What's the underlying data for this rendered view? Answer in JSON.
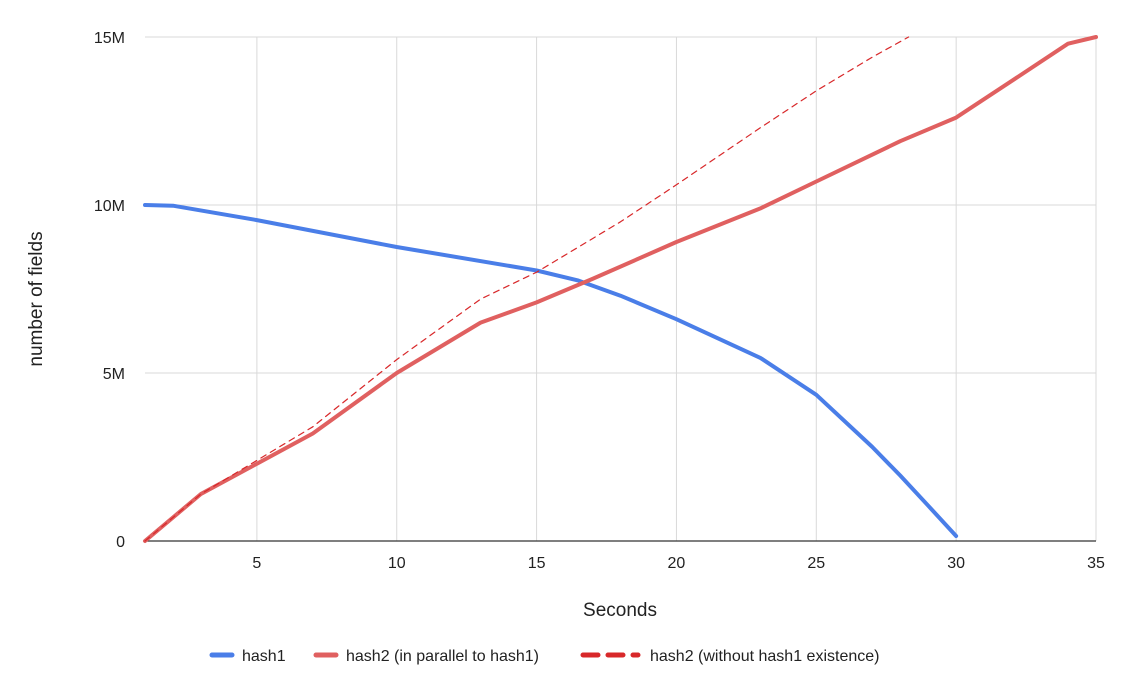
{
  "chart_data": {
    "type": "line",
    "title": "",
    "xlabel": "Seconds",
    "ylabel": "number of fields",
    "xlim": [
      1,
      35
    ],
    "ylim": [
      0,
      15000000
    ],
    "x_ticks": [
      5,
      10,
      15,
      20,
      25,
      30,
      35
    ],
    "x_tick_labels": [
      "5",
      "10",
      "15",
      "20",
      "25",
      "30",
      "35"
    ],
    "y_ticks": [
      0,
      5000000,
      10000000,
      15000000
    ],
    "y_tick_labels": [
      "0",
      "5M",
      "10M",
      "15M"
    ],
    "grid": true,
    "legend_position": "bottom",
    "series": [
      {
        "name": "hash1",
        "color": "#4a7ee8",
        "style": "solid",
        "x": [
          1,
          2,
          5,
          10,
          15,
          16.5,
          18,
          20,
          23,
          25,
          27,
          28,
          29,
          30
        ],
        "y": [
          10000000,
          9980000,
          9550000,
          8750000,
          8050000,
          7750000,
          7300000,
          6600000,
          5450000,
          4350000,
          2800000,
          1950000,
          1050000,
          150000
        ]
      },
      {
        "name": "hash2 (in parallel to hash1)",
        "color": "#e06060",
        "style": "solid",
        "x": [
          1,
          3,
          5,
          7,
          10,
          13,
          15,
          17,
          20,
          23,
          25,
          28,
          30,
          32,
          34,
          35
        ],
        "y": [
          0,
          1400000,
          2300000,
          3200000,
          5000000,
          6500000,
          7100000,
          7800000,
          8900000,
          9900000,
          10700000,
          11900000,
          12600000,
          13700000,
          14800000,
          15000000
        ]
      },
      {
        "name": "hash2 (without hash1 existence)",
        "color": "#d8282a",
        "style": "dashed",
        "x": [
          1,
          3,
          5,
          7,
          10,
          13,
          15,
          18,
          20,
          23,
          25,
          27,
          28.3
        ],
        "y": [
          0,
          1400000,
          2400000,
          3400000,
          5400000,
          7200000,
          8000000,
          9500000,
          10600000,
          12300000,
          13400000,
          14400000,
          15000000
        ]
      }
    ]
  }
}
